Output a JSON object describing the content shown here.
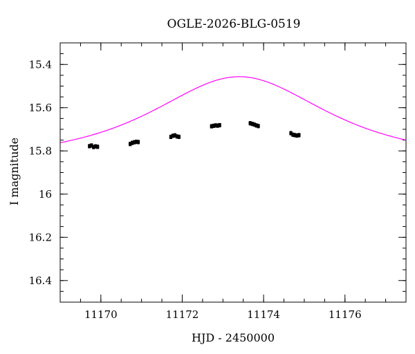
{
  "chart_data": {
    "type": "scatter",
    "title": "OGLE-2026-BLG-0519",
    "xlabel": "HJD - 2450000",
    "ylabel": "I magnitude",
    "xlim": [
      11169.0,
      11177.5
    ],
    "ylim": [
      16.5,
      15.3
    ],
    "y_inverted": true,
    "x_ticks": [
      11170,
      11172,
      11174,
      11176
    ],
    "x_tick_labels": [
      "11170",
      "11172",
      "11174",
      "11176"
    ],
    "x_minor_step": 0.5,
    "y_ticks": [
      15.4,
      15.6,
      15.8,
      16.0,
      16.2,
      16.4
    ],
    "y_tick_labels": [
      "15.4",
      "15.6",
      "15.8",
      "16",
      "16.2",
      "16.4"
    ],
    "y_minor_step": 0.05,
    "grid": false,
    "colors": {
      "model": "#ff00ff",
      "points": "#000000"
    },
    "model": {
      "description_type": "point-lens-fit",
      "t0": 11173.4,
      "tE": 2.7,
      "u0": 0.9,
      "baseline_mag": 15.84
    },
    "series": [
      {
        "x": [
          11169.72,
          11169.77,
          11169.82,
          11169.87,
          11169.92,
          11170.72,
          11170.77,
          11170.82,
          11170.87,
          11170.92,
          11171.72,
          11171.77,
          11171.82,
          11171.87,
          11171.92,
          11172.72,
          11172.77,
          11172.82,
          11172.87,
          11172.92,
          11173.67,
          11173.72,
          11173.77,
          11173.82,
          11173.87,
          11174.67,
          11174.72,
          11174.77,
          11174.82,
          11174.87
        ],
        "y": [
          15.778,
          15.775,
          15.782,
          15.779,
          15.781,
          15.768,
          15.763,
          15.76,
          15.758,
          15.759,
          15.735,
          15.73,
          15.728,
          15.733,
          15.735,
          15.686,
          15.684,
          15.682,
          15.683,
          15.681,
          15.672,
          15.675,
          15.678,
          15.682,
          15.685,
          15.718,
          15.725,
          15.727,
          15.729,
          15.727
        ],
        "err": 0.008
      }
    ]
  }
}
